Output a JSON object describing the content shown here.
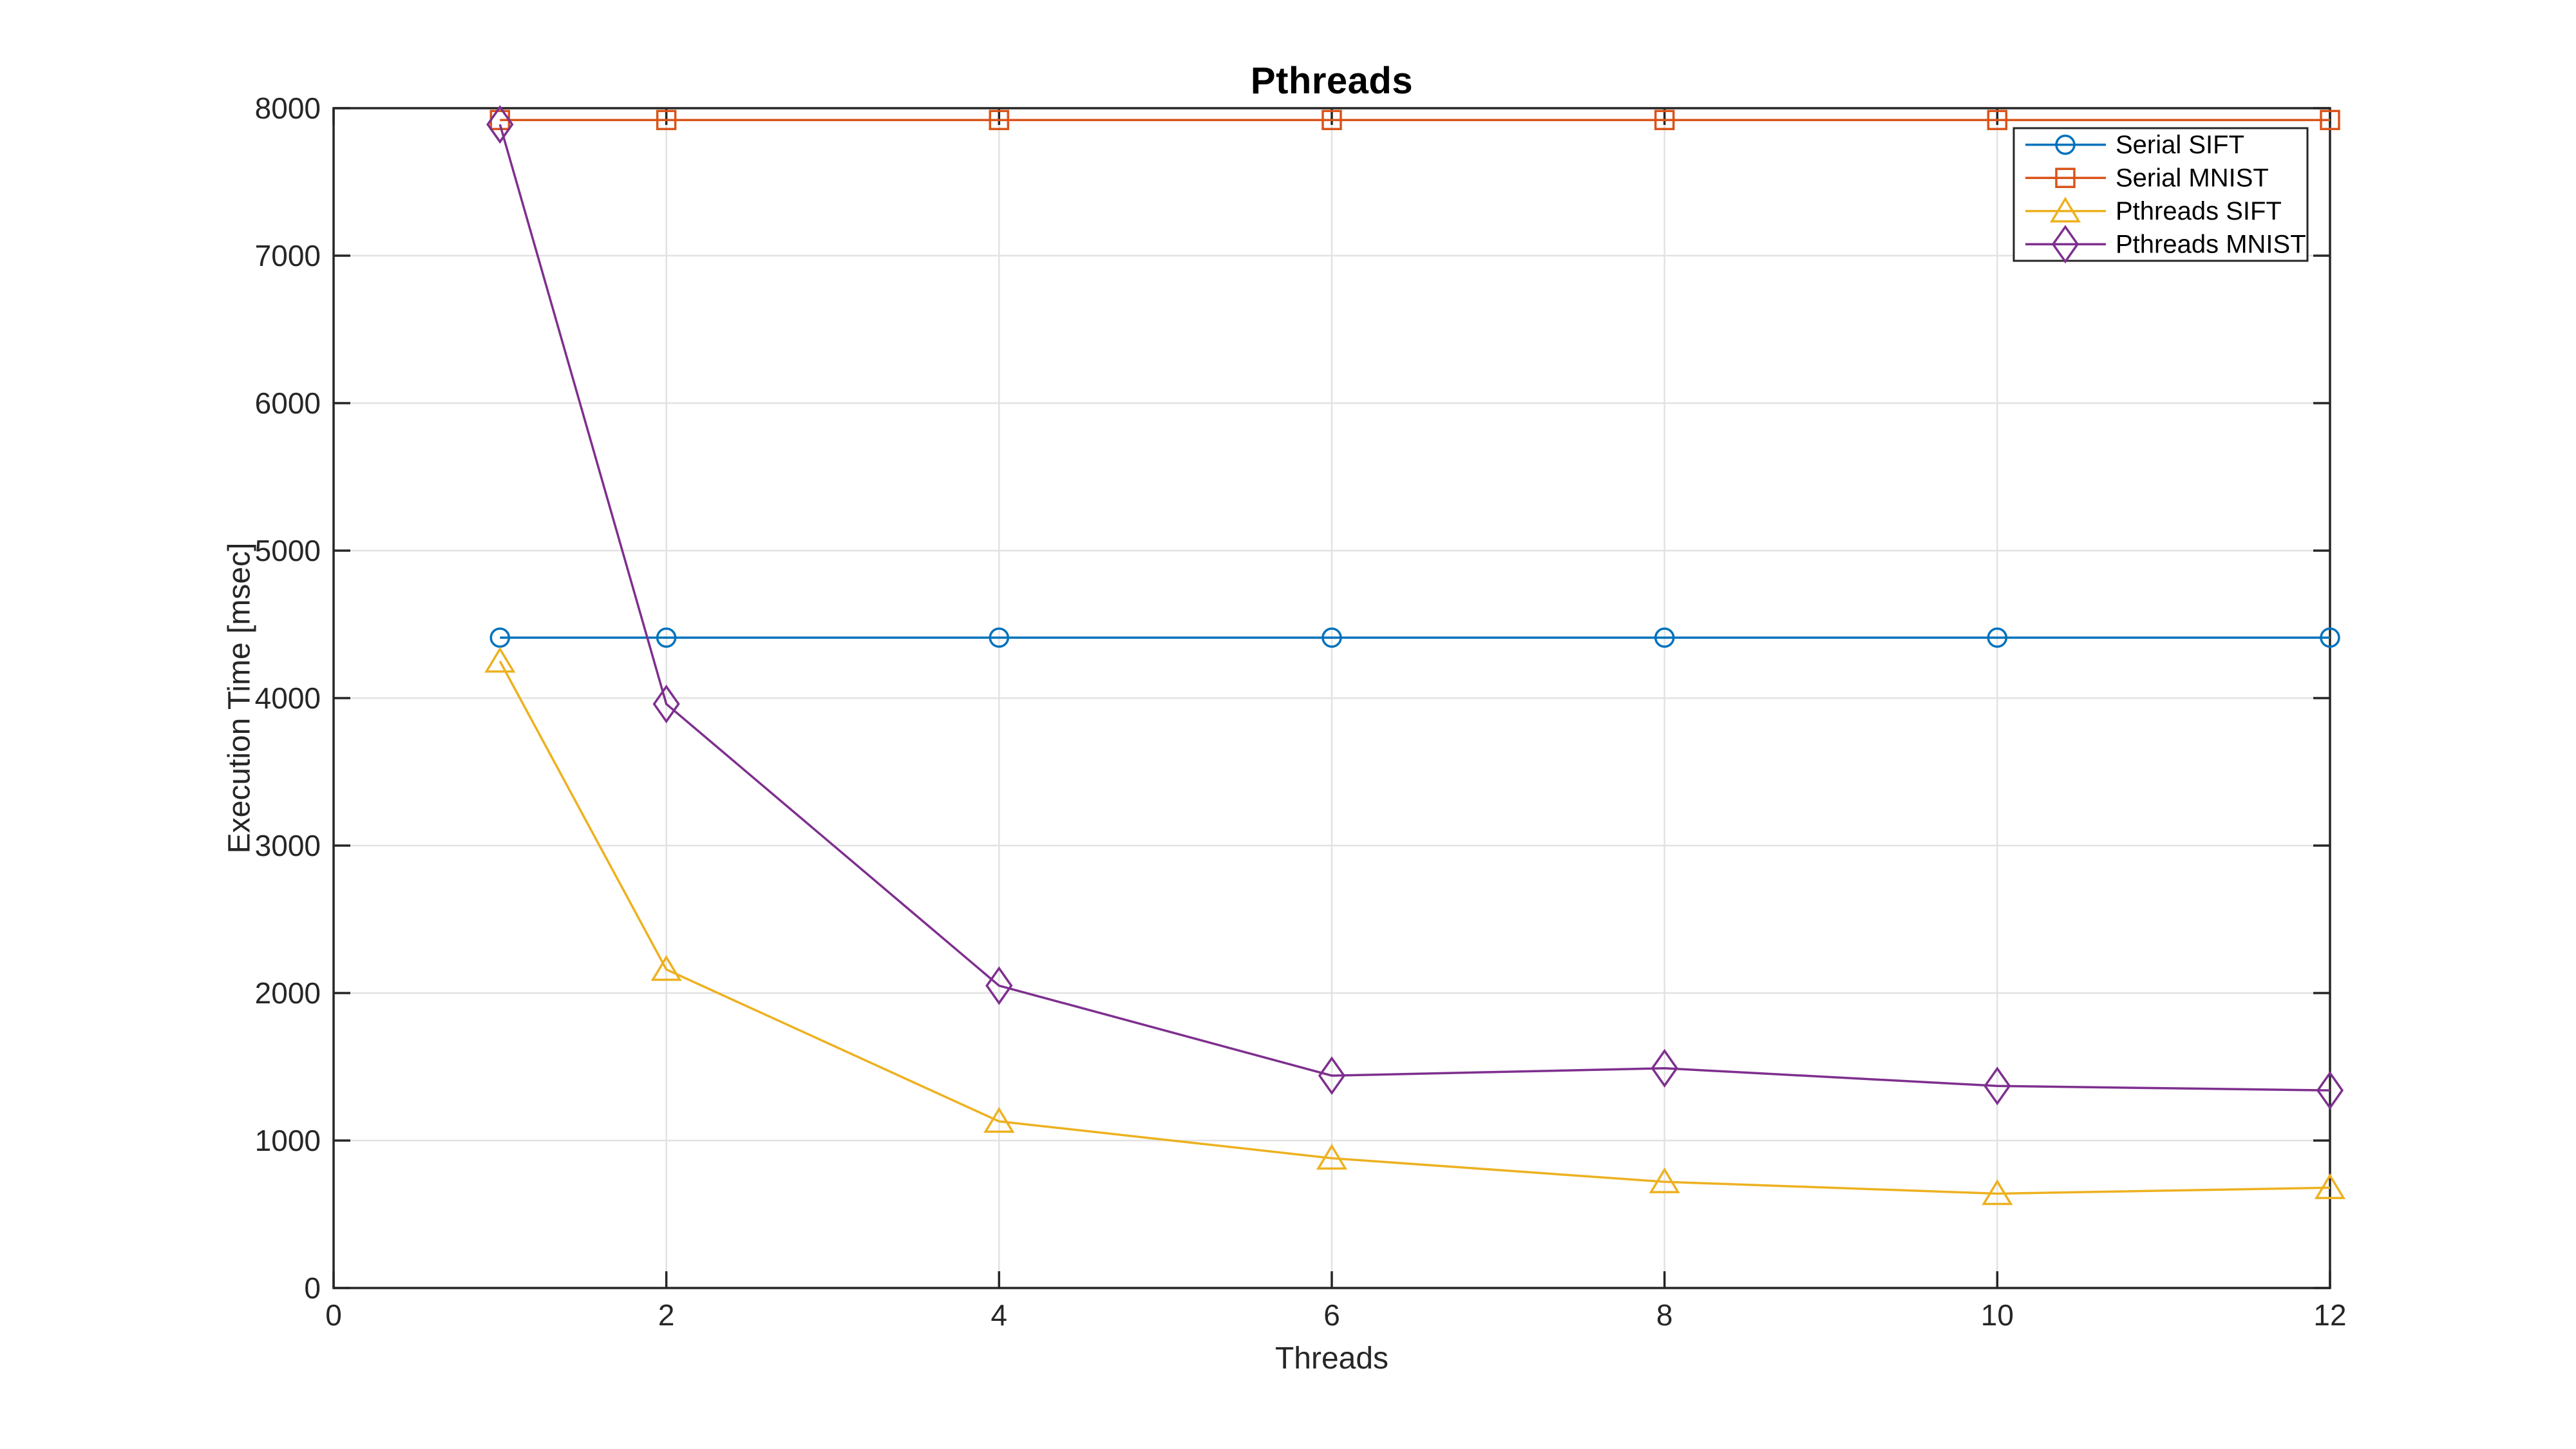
{
  "figure": {
    "background": "#ffffff",
    "axes_color": "#262626",
    "grid_color": "#e2e2e2",
    "title_color": "#000000"
  },
  "chart_data": {
    "type": "line",
    "title": "Pthreads",
    "xlabel": "Threads",
    "ylabel": "Execution Time [msec]",
    "xlim": [
      0,
      12
    ],
    "ylim": [
      0,
      8000
    ],
    "xticks": [
      0,
      2,
      4,
      6,
      8,
      10,
      12
    ],
    "yticks": [
      0,
      1000,
      2000,
      3000,
      4000,
      5000,
      6000,
      7000,
      8000
    ],
    "grid": "on",
    "legend_position": "northeast",
    "x": [
      1,
      2,
      4,
      6,
      8,
      10,
      12
    ],
    "series": [
      {
        "name": "Serial SIFT",
        "color": "#0072BD",
        "marker": "circle",
        "values": [
          4410,
          4410,
          4410,
          4410,
          4410,
          4410,
          4410
        ]
      },
      {
        "name": "Serial MNIST",
        "color": "#D95319",
        "marker": "square",
        "values": [
          7920,
          7920,
          7920,
          7920,
          7920,
          7920,
          7920
        ]
      },
      {
        "name": "Pthreads SIFT",
        "color": "#EDB120",
        "marker": "triangle-up",
        "values": [
          4250,
          2160,
          1130,
          880,
          720,
          640,
          680
        ]
      },
      {
        "name": "Pthreads MNIST",
        "color": "#7E2F8E",
        "marker": "diamond",
        "values": [
          7890,
          3960,
          2050,
          1440,
          1490,
          1370,
          1340
        ]
      }
    ],
    "legend": [
      "Serial SIFT",
      "Serial MNIST",
      "Pthreads SIFT",
      "Pthreads MNIST"
    ]
  }
}
